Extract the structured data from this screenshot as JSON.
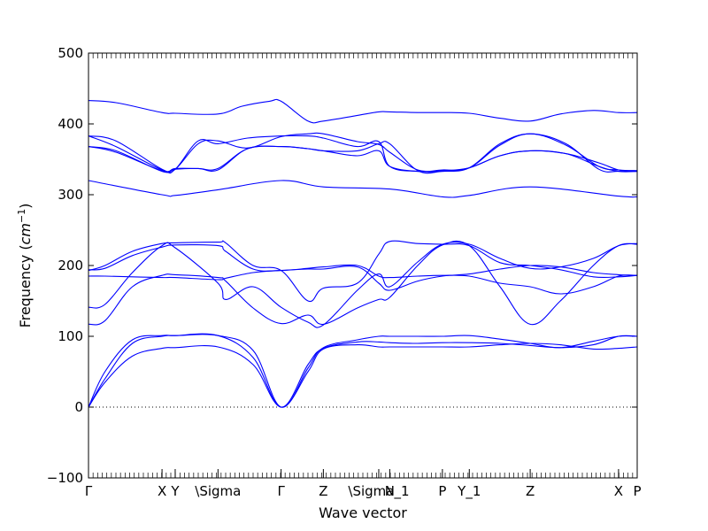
{
  "chart_data": {
    "type": "line",
    "title": "",
    "xlabel": "Wave vector",
    "ylabel_text": "Frequency (",
    "ylabel_unit": "cm",
    "ylabel_exp": "−1",
    "ylabel_close": ")",
    "ylim": [
      -100,
      500
    ],
    "yticks": [
      -100,
      0,
      100,
      200,
      300,
      400,
      500
    ],
    "xlim": [
      0,
      1
    ],
    "xticks": [
      {
        "label": "Γ",
        "pos": 0.0
      },
      {
        "label": "X",
        "pos": 0.134
      },
      {
        "label": "Y",
        "pos": 0.158
      },
      {
        "label": "\\Sigma",
        "pos": 0.236
      },
      {
        "label": "Γ",
        "pos": 0.351
      },
      {
        "label": "Z",
        "pos": 0.428
      },
      {
        "label": "\\Sigma_1",
        "pos": 0.529
      },
      {
        "label": "N",
        "pos": 0.549
      },
      {
        "label": "P",
        "pos": 0.645
      },
      {
        "label": "Y_1",
        "pos": 0.694
      },
      {
        "label": "Z",
        "pos": 0.805
      },
      {
        "label": "X",
        "pos": 0.966
      },
      {
        "label": "P",
        "pos": 1.0
      }
    ],
    "series": [
      {
        "x": [
          0,
          0.03,
          0.08,
          0.134,
          0.158,
          0.236,
          0.3,
          0.351,
          0.4,
          0.428,
          0.49,
          0.529,
          0.549,
          0.6,
          0.645,
          0.694,
          0.75,
          0.805,
          0.86,
          0.92,
          0.966,
          1.0
        ],
        "y": [
          0,
          40,
          90,
          100,
          101,
          101,
          70,
          0,
          60,
          83,
          92,
          92,
          91,
          90,
          91,
          91,
          90,
          87,
          84,
          88,
          100,
          100
        ]
      },
      {
        "x": [
          0,
          0.03,
          0.08,
          0.134,
          0.158,
          0.236,
          0.3,
          0.351,
          0.4,
          0.428,
          0.49,
          0.529,
          0.549,
          0.6,
          0.645,
          0.694,
          0.75,
          0.805,
          0.86,
          0.92,
          0.966,
          1.0
        ],
        "y": [
          0,
          50,
          95,
          101,
          101,
          101,
          80,
          0,
          55,
          84,
          95,
          100,
          100,
          100,
          100,
          101,
          96,
          90,
          84,
          93,
          100,
          100
        ]
      },
      {
        "x": [
          0,
          0.03,
          0.08,
          0.134,
          0.158,
          0.236,
          0.3,
          0.351,
          0.4,
          0.428,
          0.49,
          0.529,
          0.549,
          0.6,
          0.645,
          0.694,
          0.75,
          0.805,
          0.86,
          0.92,
          0.966,
          1.0
        ],
        "y": [
          0,
          35,
          72,
          83,
          84,
          85,
          60,
          0,
          50,
          82,
          88,
          85,
          85,
          85,
          85,
          85,
          88,
          90,
          88,
          82,
          83,
          85
        ]
      },
      {
        "x": [
          0,
          0.03,
          0.08,
          0.134,
          0.158,
          0.236,
          0.25,
          0.3,
          0.351,
          0.4,
          0.428,
          0.49,
          0.529,
          0.549,
          0.6,
          0.645,
          0.694,
          0.75,
          0.805,
          0.86,
          0.92,
          0.966,
          1.0
        ],
        "y": [
          117,
          122,
          170,
          186,
          187,
          183,
          178,
          140,
          118,
          130,
          117,
          140,
          152,
          155,
          200,
          229,
          228,
          170,
          117,
          150,
          200,
          228,
          230
        ]
      },
      {
        "x": [
          0,
          0.03,
          0.08,
          0.134,
          0.158,
          0.236,
          0.25,
          0.3,
          0.351,
          0.4,
          0.428,
          0.49,
          0.529,
          0.549,
          0.6,
          0.645,
          0.694,
          0.75,
          0.805,
          0.86,
          0.92,
          0.966,
          1.0
        ],
        "y": [
          141,
          145,
          190,
          228,
          225,
          175,
          152,
          170,
          141,
          120,
          116,
          165,
          188,
          170,
          205,
          230,
          230,
          210,
          196,
          198,
          210,
          228,
          231
        ]
      },
      {
        "x": [
          0,
          0.03,
          0.08,
          0.134,
          0.158,
          0.236,
          0.25,
          0.3,
          0.351,
          0.4,
          0.428,
          0.49,
          0.529,
          0.549,
          0.6,
          0.645,
          0.694,
          0.75,
          0.805,
          0.86,
          0.92,
          0.966,
          1.0
        ],
        "y": [
          185,
          185,
          184,
          183,
          183,
          180,
          182,
          190,
          193,
          195,
          195,
          198,
          175,
          165,
          178,
          185,
          188,
          195,
          200,
          198,
          190,
          187,
          186
        ]
      },
      {
        "x": [
          0,
          0.03,
          0.08,
          0.134,
          0.158,
          0.236,
          0.25,
          0.3,
          0.351,
          0.4,
          0.428,
          0.49,
          0.529,
          0.549,
          0.6,
          0.645,
          0.694,
          0.75,
          0.805,
          0.86,
          0.92,
          0.966,
          1.0
        ],
        "y": [
          193,
          200,
          220,
          231,
          232,
          233,
          232,
          200,
          193,
          150,
          168,
          175,
          216,
          234,
          231,
          230,
          228,
          204,
          200,
          194,
          184,
          184,
          186
        ]
      },
      {
        "x": [
          0,
          0.03,
          0.08,
          0.134,
          0.158,
          0.236,
          0.25,
          0.3,
          0.351,
          0.4,
          0.428,
          0.49,
          0.529,
          0.549,
          0.6,
          0.645,
          0.694,
          0.75,
          0.805,
          0.86,
          0.92,
          0.966,
          1.0
        ],
        "y": [
          194,
          196,
          214,
          226,
          229,
          228,
          220,
          195,
          193,
          196,
          198,
          200,
          185,
          183,
          185,
          186,
          185,
          175,
          170,
          160,
          170,
          185,
          186
        ]
      },
      {
        "x": [
          0,
          0.134,
          0.158,
          0.236,
          0.351,
          0.428,
          0.549,
          0.645,
          0.694,
          0.805,
          0.966,
          1.0
        ],
        "y": [
          320,
          300,
          299,
          307,
          320,
          311,
          308,
          297,
          299,
          311,
          298,
          297
        ]
      },
      {
        "x": [
          0,
          0.05,
          0.134,
          0.158,
          0.2,
          0.236,
          0.29,
          0.351,
          0.4,
          0.428,
          0.49,
          0.529,
          0.549,
          0.6,
          0.645,
          0.694,
          0.75,
          0.805,
          0.87,
          0.93,
          0.966,
          1.0
        ],
        "y": [
          383,
          376,
          336,
          336,
          372,
          376,
          366,
          382,
          386,
          386,
          375,
          371,
          360,
          335,
          335,
          338,
          370,
          386,
          370,
          340,
          335,
          334
        ]
      },
      {
        "x": [
          0,
          0.05,
          0.134,
          0.158,
          0.2,
          0.236,
          0.29,
          0.351,
          0.4,
          0.428,
          0.49,
          0.529,
          0.549,
          0.6,
          0.645,
          0.694,
          0.75,
          0.805,
          0.87,
          0.93,
          0.966,
          1.0
        ],
        "y": [
          383,
          368,
          335,
          336,
          376,
          372,
          380,
          383,
          383,
          380,
          368,
          375,
          340,
          333,
          333,
          338,
          372,
          386,
          372,
          336,
          333,
          333
        ]
      },
      {
        "x": [
          0,
          0.05,
          0.134,
          0.158,
          0.2,
          0.236,
          0.29,
          0.351,
          0.4,
          0.428,
          0.49,
          0.529,
          0.549,
          0.6,
          0.645,
          0.694,
          0.75,
          0.805,
          0.87,
          0.93,
          0.966,
          1.0
        ],
        "y": [
          368,
          362,
          333,
          336,
          337,
          335,
          365,
          368,
          365,
          362,
          362,
          372,
          372,
          334,
          333,
          338,
          355,
          362,
          358,
          340,
          333,
          333
        ]
      },
      {
        "x": [
          0,
          0.05,
          0.134,
          0.158,
          0.2,
          0.236,
          0.29,
          0.351,
          0.4,
          0.428,
          0.49,
          0.529,
          0.549,
          0.6,
          0.645,
          0.694,
          0.75,
          0.805,
          0.87,
          0.93,
          0.966,
          1.0
        ],
        "y": [
          368,
          360,
          334,
          337,
          337,
          337,
          365,
          368,
          365,
          362,
          355,
          362,
          340,
          333,
          334,
          338,
          355,
          362,
          358,
          345,
          335,
          333
        ]
      },
      {
        "x": [
          0,
          0.05,
          0.134,
          0.158,
          0.236,
          0.28,
          0.33,
          0.351,
          0.4,
          0.428,
          0.49,
          0.529,
          0.549,
          0.6,
          0.645,
          0.694,
          0.75,
          0.805,
          0.86,
          0.92,
          0.966,
          1.0
        ],
        "y": [
          433,
          430,
          416,
          415,
          414,
          425,
          432,
          432,
          404,
          404,
          412,
          417,
          417,
          416,
          416,
          415,
          408,
          404,
          414,
          419,
          416,
          416
        ]
      }
    ]
  }
}
